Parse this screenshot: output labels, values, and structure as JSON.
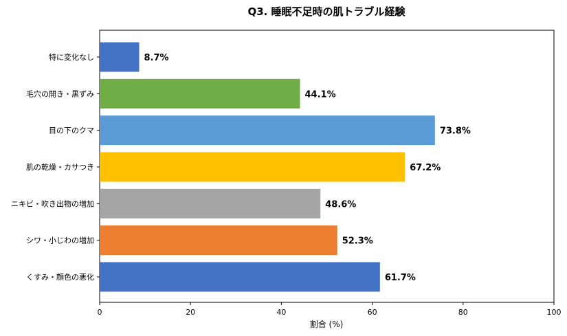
{
  "chart_data": {
    "type": "bar",
    "orientation": "horizontal",
    "title": "Q3. 睡眠不足時の肌トラブル経験",
    "xlabel": "割合 (%)",
    "ylabel": "",
    "xlim": [
      0,
      100
    ],
    "xticks": [
      0,
      20,
      40,
      60,
      80,
      100
    ],
    "grid": false,
    "categories": [
      "特に変化なし",
      "毛穴の開き・黒ずみ",
      "目の下のクマ",
      "肌の乾燥・カサつき",
      "ニキビ・吹き出物の増加",
      "シワ・小じわの増加",
      "くすみ・顔色の悪化"
    ],
    "values": [
      8.7,
      44.1,
      73.8,
      67.2,
      48.6,
      52.3,
      61.7
    ],
    "value_labels": [
      "8.7%",
      "44.1%",
      "73.8%",
      "67.2%",
      "48.6%",
      "52.3%",
      "61.7%"
    ],
    "colors": [
      "#4472C4",
      "#70AD47",
      "#5B9BD5",
      "#FFC000",
      "#A5A5A5",
      "#ED7D31",
      "#4472C4"
    ]
  }
}
